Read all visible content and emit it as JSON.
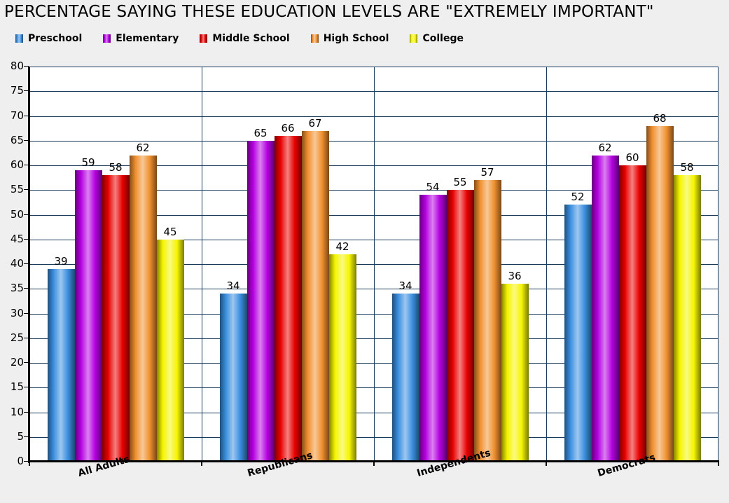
{
  "chart_data": {
    "type": "bar",
    "title": "PERCENTAGE SAYING THESE EDUCATION LEVELS ARE \"EXTREMELY IMPORTANT\"",
    "xlabel": "",
    "ylabel": "",
    "ylim": [
      0,
      80
    ],
    "yticks": [
      0,
      5,
      10,
      15,
      20,
      25,
      30,
      35,
      40,
      45,
      50,
      55,
      60,
      65,
      70,
      75,
      80
    ],
    "grid": true,
    "legend_position": "top",
    "categories": [
      "All Adults",
      "Republicans",
      "Independents",
      "Democrats"
    ],
    "series": [
      {
        "name": "Preschool",
        "color": "#3b8fe0",
        "values": [
          39,
          34,
          34,
          52
        ]
      },
      {
        "name": "Elementary",
        "color": "#b400e0",
        "values": [
          59,
          65,
          54,
          62
        ]
      },
      {
        "name": "Middle School",
        "color": "#e80000",
        "values": [
          58,
          66,
          55,
          60
        ]
      },
      {
        "name": "High School",
        "color": "#f0902f",
        "values": [
          62,
          67,
          57,
          68
        ]
      },
      {
        "name": "College",
        "color": "#f5f500",
        "values": [
          45,
          42,
          36,
          58
        ]
      }
    ]
  }
}
